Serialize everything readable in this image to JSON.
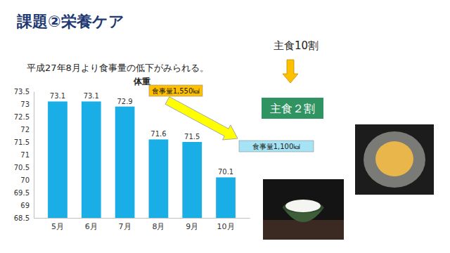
{
  "slide": {
    "title": "課題②栄養ケア",
    "note": "平成27年8月より食事量の低下がみられる。",
    "staple_before": "主食10割",
    "staple_after": "主食２割"
  },
  "chart_data": {
    "type": "bar",
    "title": "体重",
    "categories": [
      "5月",
      "6月",
      "7月",
      "8月",
      "9月",
      "10月"
    ],
    "values": [
      73.1,
      73.1,
      72.9,
      71.6,
      71.5,
      70.1
    ],
    "color": "#1aaee6",
    "ylim": [
      68.5,
      73.5
    ],
    "yticks": [
      68.5,
      69,
      69.5,
      70,
      70.5,
      71,
      71.5,
      72,
      72.5,
      73,
      73.5
    ],
    "grid": false,
    "data_labels": true,
    "annotations": [
      "食事量1,550㎉",
      "食事量1,100㎉"
    ]
  }
}
